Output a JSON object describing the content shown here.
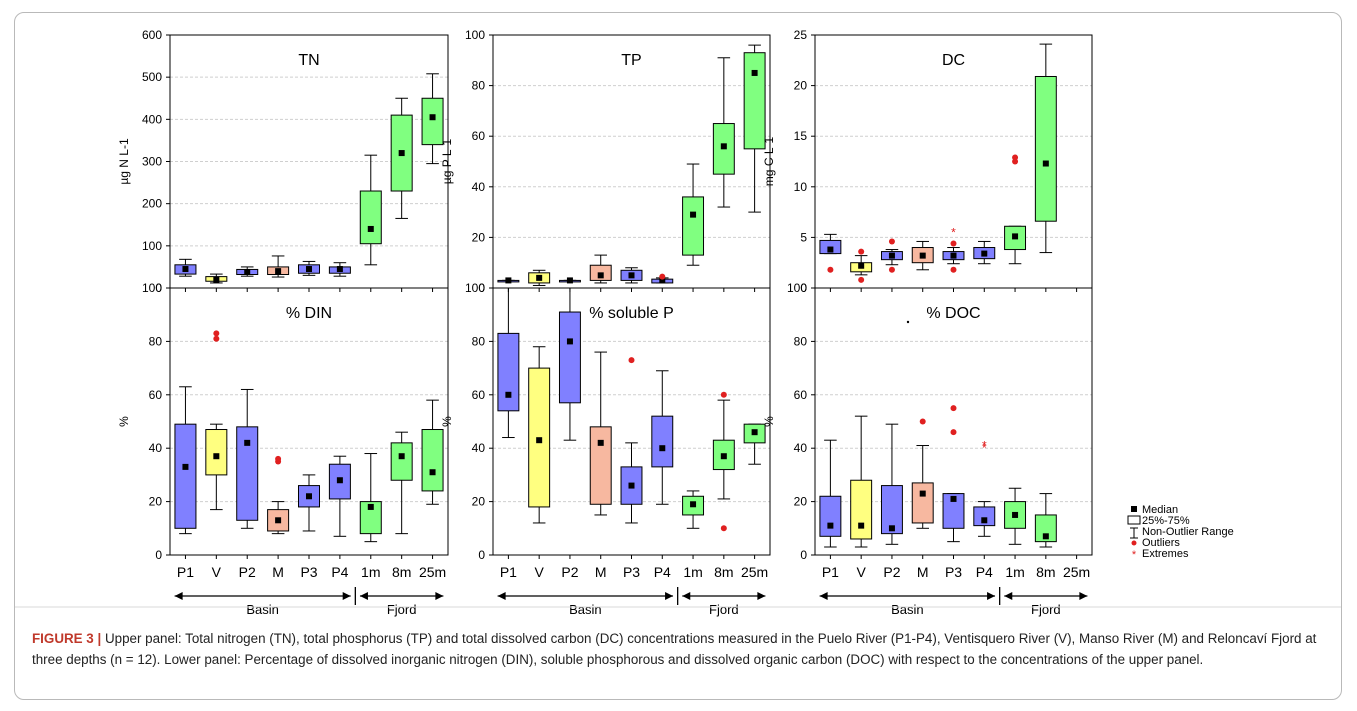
{
  "figure": {
    "label": "FIGURE 3 |",
    "caption": "Upper panel: Total nitrogen (TN), total phosphorus (TP) and total dissolved carbon (DC) concentrations measured in the Puelo River (P1-P4), Ventisquero River (V), Manso River (M) and Reloncaví Fjord at three depths (n = 12). Lower panel: Percentage of dissolved inorganic nitrogen (DIN), soluble phosphorous and dissolved organic carbon (DOC) with respect to the concentrations of the upper panel."
  },
  "colors": {
    "P": "#8080ff",
    "V": "#ffff80",
    "M": "#f7b8a0",
    "F": "#80ff80",
    "outlier": "#e02020",
    "grid": "#cfcfcf",
    "median": "#000000"
  },
  "legend": {
    "median": "Median",
    "box": "25%-75%",
    "whisker": "Non-Outlier Range",
    "outliers": "Outliers",
    "extremes": "Extremes"
  },
  "groups": {
    "basin": "Basin",
    "fjord": "Fjord"
  },
  "chart_data": [
    {
      "type": "box",
      "title": "TN",
      "ylabel": "µg N L-1",
      "ylim": [
        0,
        600
      ],
      "yticks": [
        0,
        100,
        200,
        300,
        400,
        500,
        600
      ],
      "categories": [
        "P1",
        "V",
        "P2",
        "M",
        "P3",
        "P4",
        "1m",
        "8m",
        "25m"
      ],
      "show_xticklabels": false,
      "boxes": [
        {
          "cat": "P1",
          "q1": 33,
          "q3": 55,
          "median": 45,
          "min": 28,
          "max": 68,
          "color": "P",
          "outliers": [],
          "extremes": []
        },
        {
          "cat": "V",
          "q1": 16,
          "q3": 27,
          "median": 20,
          "min": 12,
          "max": 33,
          "color": "V",
          "outliers": [],
          "extremes": []
        },
        {
          "cat": "P2",
          "q1": 32,
          "q3": 44,
          "median": 38,
          "min": 28,
          "max": 50,
          "color": "P",
          "outliers": [],
          "extremes": []
        },
        {
          "cat": "M",
          "q1": 32,
          "q3": 50,
          "median": 40,
          "min": 26,
          "max": 76,
          "color": "M",
          "outliers": [],
          "extremes": []
        },
        {
          "cat": "P3",
          "q1": 35,
          "q3": 55,
          "median": 45,
          "min": 30,
          "max": 63,
          "color": "P",
          "outliers": [],
          "extremes": []
        },
        {
          "cat": "P4",
          "q1": 35,
          "q3": 50,
          "median": 45,
          "min": 28,
          "max": 60,
          "color": "P",
          "outliers": [],
          "extremes": []
        },
        {
          "cat": "1m",
          "q1": 105,
          "q3": 230,
          "median": 140,
          "min": 55,
          "max": 315,
          "color": "F",
          "outliers": [],
          "extremes": []
        },
        {
          "cat": "8m",
          "q1": 230,
          "q3": 410,
          "median": 320,
          "min": 165,
          "max": 450,
          "color": "F",
          "outliers": [],
          "extremes": []
        },
        {
          "cat": "25m",
          "q1": 340,
          "q3": 450,
          "median": 405,
          "min": 295,
          "max": 508,
          "color": "F",
          "outliers": [],
          "extremes": []
        }
      ]
    },
    {
      "type": "box",
      "title": "TP",
      "ylabel": "µg P L-1",
      "ylim": [
        0,
        100
      ],
      "yticks": [
        0,
        20,
        40,
        60,
        80,
        100
      ],
      "categories": [
        "P1",
        "V",
        "P2",
        "M",
        "P3",
        "P4",
        "1m",
        "8m",
        "25m"
      ],
      "show_xticklabels": false,
      "boxes": [
        {
          "cat": "P1",
          "q1": 3,
          "q3": 3,
          "median": 3,
          "min": 3,
          "max": 3,
          "color": "P",
          "outliers": [],
          "extremes": []
        },
        {
          "cat": "V",
          "q1": 2,
          "q3": 6,
          "median": 4,
          "min": 1,
          "max": 7,
          "color": "V",
          "outliers": [],
          "extremes": []
        },
        {
          "cat": "P2",
          "q1": 3,
          "q3": 3,
          "median": 3,
          "min": 3,
          "max": 3,
          "color": "P",
          "outliers": [],
          "extremes": []
        },
        {
          "cat": "M",
          "q1": 3,
          "q3": 9,
          "median": 5,
          "min": 2,
          "max": 13,
          "color": "M",
          "outliers": [],
          "extremes": []
        },
        {
          "cat": "P3",
          "q1": 3,
          "q3": 7,
          "median": 5,
          "min": 2,
          "max": 8,
          "color": "P",
          "outliers": [],
          "extremes": []
        },
        {
          "cat": "P4",
          "q1": 2,
          "q3": 3.5,
          "median": 3,
          "min": 2,
          "max": 4,
          "color": "P",
          "outliers": [
            4.5
          ],
          "extremes": []
        },
        {
          "cat": "1m",
          "q1": 13,
          "q3": 36,
          "median": 29,
          "min": 9,
          "max": 49,
          "color": "F",
          "outliers": [],
          "extremes": []
        },
        {
          "cat": "8m",
          "q1": 45,
          "q3": 65,
          "median": 56,
          "min": 32,
          "max": 91,
          "color": "F",
          "outliers": [],
          "extremes": []
        },
        {
          "cat": "25m",
          "q1": 55,
          "q3": 93,
          "median": 85,
          "min": 30,
          "max": 96,
          "color": "F",
          "outliers": [],
          "extremes": []
        }
      ]
    },
    {
      "type": "box",
      "title": "DC",
      "ylabel": "mg C L-1",
      "ylim": [
        0,
        25
      ],
      "yticks": [
        0,
        5,
        10,
        15,
        20,
        25
      ],
      "categories": [
        "P1",
        "V",
        "P2",
        "M",
        "P3",
        "P4",
        "1m",
        "8m",
        "25m"
      ],
      "show_xticklabels": false,
      "boxes": [
        {
          "cat": "P1",
          "q1": 3.4,
          "q3": 4.7,
          "median": 3.8,
          "min": 3.4,
          "max": 5.3,
          "color": "P",
          "outliers": [
            1.8
          ],
          "extremes": []
        },
        {
          "cat": "V",
          "q1": 1.6,
          "q3": 2.5,
          "median": 2.2,
          "min": 1.3,
          "max": 3.2,
          "color": "V",
          "outliers": [
            3.6,
            0.8
          ],
          "extremes": []
        },
        {
          "cat": "P2",
          "q1": 2.8,
          "q3": 3.6,
          "median": 3.2,
          "min": 2.3,
          "max": 3.8,
          "color": "P",
          "outliers": [
            4.6,
            1.8
          ],
          "extremes": []
        },
        {
          "cat": "M",
          "q1": 2.5,
          "q3": 4.0,
          "median": 3.2,
          "min": 1.8,
          "max": 4.6,
          "color": "M",
          "outliers": [],
          "extremes": []
        },
        {
          "cat": "P3",
          "q1": 2.8,
          "q3": 3.6,
          "median": 3.2,
          "min": 2.4,
          "max": 4.0,
          "color": "P",
          "outliers": [
            4.4,
            1.8
          ],
          "extremes": [
            5.5
          ]
        },
        {
          "cat": "P4",
          "q1": 2.9,
          "q3": 4.0,
          "median": 3.4,
          "min": 2.4,
          "max": 4.6,
          "color": "P",
          "outliers": [],
          "extremes": []
        },
        {
          "cat": "1m",
          "q1": 3.8,
          "q3": 6.1,
          "median": 5.1,
          "min": 2.4,
          "max": 6.1,
          "color": "F",
          "outliers": [
            12.5,
            12.9
          ],
          "extremes": []
        },
        {
          "cat": "8m",
          "q1": 6.6,
          "q3": 20.9,
          "median": 12.3,
          "min": 3.5,
          "max": 24.1,
          "color": "F",
          "outliers": [],
          "extremes": []
        }
      ]
    },
    {
      "type": "box",
      "title": "% DIN",
      "ylabel": "%",
      "ylim": [
        0,
        100
      ],
      "yticks": [
        0,
        20,
        40,
        60,
        80,
        100
      ],
      "categories": [
        "P1",
        "V",
        "P2",
        "M",
        "P3",
        "P4",
        "1m",
        "8m",
        "25m"
      ],
      "show_xticklabels": true,
      "boxes": [
        {
          "cat": "P1",
          "q1": 10,
          "q3": 49,
          "median": 33,
          "min": 8,
          "max": 63,
          "color": "P",
          "outliers": [],
          "extremes": []
        },
        {
          "cat": "V",
          "q1": 30,
          "q3": 47,
          "median": 37,
          "min": 17,
          "max": 49,
          "color": "V",
          "outliers": [
            81,
            83
          ],
          "extremes": []
        },
        {
          "cat": "P2",
          "q1": 13,
          "q3": 48,
          "median": 42,
          "min": 10,
          "max": 62,
          "color": "P",
          "outliers": [],
          "extremes": []
        },
        {
          "cat": "M",
          "q1": 9,
          "q3": 17,
          "median": 13,
          "min": 8,
          "max": 20,
          "color": "M",
          "outliers": [
            35,
            36
          ],
          "extremes": []
        },
        {
          "cat": "P3",
          "q1": 18,
          "q3": 26,
          "median": 22,
          "min": 9,
          "max": 30,
          "color": "P",
          "outliers": [],
          "extremes": []
        },
        {
          "cat": "P4",
          "q1": 21,
          "q3": 34,
          "median": 28,
          "min": 7,
          "max": 37,
          "color": "P",
          "outliers": [],
          "extremes": []
        },
        {
          "cat": "1m",
          "q1": 8,
          "q3": 20,
          "median": 18,
          "min": 5,
          "max": 38,
          "color": "F",
          "outliers": [],
          "extremes": []
        },
        {
          "cat": "8m",
          "q1": 28,
          "q3": 42,
          "median": 37,
          "min": 8,
          "max": 46,
          "color": "F",
          "outliers": [],
          "extremes": []
        },
        {
          "cat": "25m",
          "q1": 24,
          "q3": 47,
          "median": 31,
          "min": 19,
          "max": 58,
          "color": "F",
          "outliers": [],
          "extremes": []
        }
      ]
    },
    {
      "type": "box",
      "title": "% soluble P",
      "ylabel": "%",
      "ylim": [
        0,
        100
      ],
      "yticks": [
        0,
        20,
        40,
        60,
        80,
        100
      ],
      "categories": [
        "P1",
        "V",
        "P2",
        "M",
        "P3",
        "P4",
        "1m",
        "8m",
        "25m"
      ],
      "show_xticklabels": true,
      "boxes": [
        {
          "cat": "P1",
          "q1": 54,
          "q3": 83,
          "median": 60,
          "min": 44,
          "max": 100,
          "color": "P",
          "outliers": [],
          "extremes": []
        },
        {
          "cat": "V",
          "q1": 18,
          "q3": 70,
          "median": 43,
          "min": 12,
          "max": 78,
          "color": "V",
          "outliers": [],
          "extremes": []
        },
        {
          "cat": "P2",
          "q1": 57,
          "q3": 91,
          "median": 80,
          "min": 43,
          "max": 100,
          "color": "P",
          "outliers": [],
          "extremes": []
        },
        {
          "cat": "M",
          "q1": 19,
          "q3": 48,
          "median": 42,
          "min": 15,
          "max": 76,
          "color": "M",
          "outliers": [],
          "extremes": []
        },
        {
          "cat": "P3",
          "q1": 19,
          "q3": 33,
          "median": 26,
          "min": 12,
          "max": 42,
          "color": "P",
          "outliers": [
            73
          ],
          "extremes": []
        },
        {
          "cat": "P4",
          "q1": 33,
          "q3": 52,
          "median": 40,
          "min": 19,
          "max": 69,
          "color": "P",
          "outliers": [],
          "extremes": []
        },
        {
          "cat": "1m",
          "q1": 15,
          "q3": 22,
          "median": 19,
          "min": 10,
          "max": 24,
          "color": "F",
          "outliers": [],
          "extremes": []
        },
        {
          "cat": "8m",
          "q1": 32,
          "q3": 43,
          "median": 37,
          "min": 21,
          "max": 58,
          "color": "F",
          "outliers": [
            60,
            10
          ],
          "extremes": []
        },
        {
          "cat": "25m",
          "q1": 42,
          "q3": 49,
          "median": 46,
          "min": 34,
          "max": 49,
          "color": "F",
          "outliers": [],
          "extremes": []
        }
      ]
    },
    {
      "type": "box",
      "title": "% DOC",
      "ylabel": "%",
      "ylim": [
        0,
        100
      ],
      "yticks": [
        0,
        20,
        40,
        60,
        80,
        100
      ],
      "categories": [
        "P1",
        "V",
        "P2",
        "M",
        "P3",
        "P4",
        "1m",
        "8m",
        "25m"
      ],
      "show_xticklabels": true,
      "boxes": [
        {
          "cat": "P1",
          "q1": 7,
          "q3": 22,
          "median": 11,
          "min": 3,
          "max": 43,
          "color": "P",
          "outliers": [],
          "extremes": []
        },
        {
          "cat": "V",
          "q1": 6,
          "q3": 28,
          "median": 11,
          "min": 3,
          "max": 52,
          "color": "V",
          "outliers": [],
          "extremes": []
        },
        {
          "cat": "P2",
          "q1": 8,
          "q3": 26,
          "median": 10,
          "min": 4,
          "max": 49,
          "color": "P",
          "outliers": [],
          "extremes": []
        },
        {
          "cat": "M",
          "q1": 12,
          "q3": 27,
          "median": 23,
          "min": 10,
          "max": 41,
          "color": "M",
          "outliers": [
            50
          ],
          "extremes": []
        },
        {
          "cat": "P3",
          "q1": 10,
          "q3": 23,
          "median": 21,
          "min": 5,
          "max": 23,
          "color": "P",
          "outliers": [
            55,
            46
          ],
          "extremes": []
        },
        {
          "cat": "P4",
          "q1": 11,
          "q3": 18,
          "median": 13,
          "min": 7,
          "max": 20,
          "color": "P",
          "outliers": [],
          "extremes": [
            40,
            41
          ]
        },
        {
          "cat": "1m",
          "q1": 10,
          "q3": 20,
          "median": 15,
          "min": 4,
          "max": 25,
          "color": "F",
          "outliers": [],
          "extremes": []
        },
        {
          "cat": "8m",
          "q1": 5,
          "q3": 15,
          "median": 7,
          "min": 3,
          "max": 23,
          "color": "F",
          "outliers": [],
          "extremes": []
        }
      ]
    }
  ]
}
